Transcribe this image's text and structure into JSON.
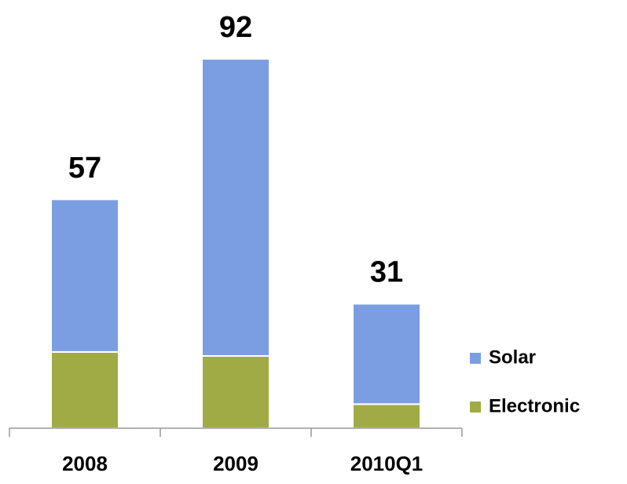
{
  "chart_data": {
    "type": "stacked_bar",
    "categories": [
      "2008",
      "2009",
      "2010Q1"
    ],
    "series": [
      {
        "name": "Electronic",
        "color": "#a0ab45",
        "values": [
          19,
          18,
          6
        ]
      },
      {
        "name": "Solar",
        "color": "#7b9ee3",
        "values": [
          38,
          74,
          25
        ]
      }
    ],
    "totals": [
      57,
      92,
      31
    ],
    "ylim": [
      0,
      100
    ],
    "legend": "right"
  }
}
